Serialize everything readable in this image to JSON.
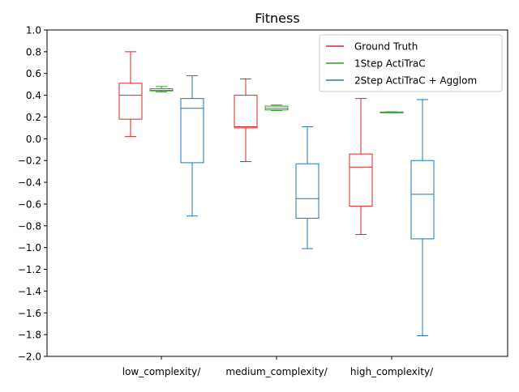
{
  "chart_data": {
    "type": "boxplot",
    "title": "Fitness",
    "xlabel": "",
    "ylabel": "",
    "ylim": [
      -2.0,
      1.0
    ],
    "yticks": [
      1.0,
      0.8,
      0.6,
      0.4,
      0.2,
      0.0,
      -0.2,
      -0.4,
      -0.6,
      -0.8,
      -1.0,
      -1.2,
      -1.4,
      -1.6,
      -1.8,
      -2.0
    ],
    "ytick_labels": [
      "1.0",
      "0.8",
      "0.6",
      "0.4",
      "0.2",
      "0.0",
      "−0.2",
      "−0.4",
      "−0.6",
      "−0.8",
      "−1.0",
      "−1.2",
      "−1.4",
      "−1.6",
      "−1.8",
      "−2.0"
    ],
    "categories": [
      "low_complexity/",
      "medium_complexity/",
      "high_complexity/"
    ],
    "legend_position": "top-right",
    "grid": false,
    "series": [
      {
        "name": "Ground Truth",
        "color": "#d62728",
        "boxes": [
          {
            "whislo": 0.02,
            "q1": 0.18,
            "med": 0.4,
            "q3": 0.51,
            "whishi": 0.8
          },
          {
            "whislo": -0.21,
            "q1": 0.1,
            "med": 0.11,
            "q3": 0.4,
            "whishi": 0.55
          },
          {
            "whislo": -0.88,
            "q1": -0.62,
            "med": -0.26,
            "q3": -0.14,
            "whishi": 0.37
          }
        ]
      },
      {
        "name": "1Step ActiTraC",
        "color": "#2ca02c",
        "boxes": [
          {
            "whislo": 0.43,
            "q1": 0.44,
            "med": 0.445,
            "q3": 0.46,
            "whishi": 0.48
          },
          {
            "whislo": 0.26,
            "q1": 0.265,
            "med": 0.28,
            "q3": 0.3,
            "whishi": 0.31
          },
          {
            "whislo": 0.24,
            "q1": 0.242,
            "med": 0.244,
            "q3": 0.246,
            "whishi": 0.248
          }
        ]
      },
      {
        "name": "2Step ActiTraC + Agglom",
        "color": "#1f77b4",
        "boxes": [
          {
            "whislo": -0.71,
            "q1": -0.22,
            "med": 0.28,
            "q3": 0.37,
            "whishi": 0.58
          },
          {
            "whislo": -1.01,
            "q1": -0.73,
            "med": -0.55,
            "q3": -0.23,
            "whishi": 0.11
          },
          {
            "whislo": -1.81,
            "q1": -0.92,
            "med": -0.51,
            "q3": -0.2,
            "whishi": 0.36
          }
        ]
      }
    ]
  }
}
